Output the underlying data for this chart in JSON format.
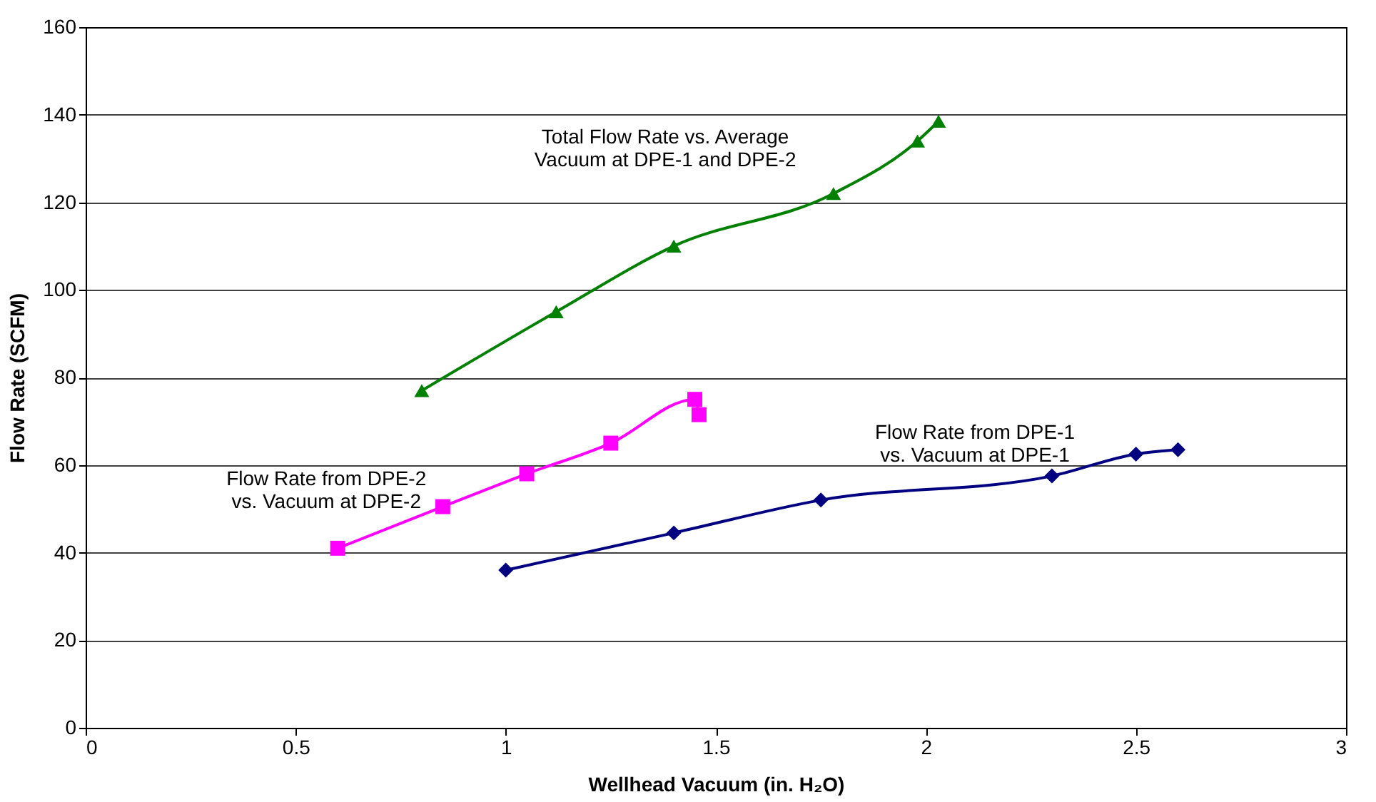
{
  "chart_data": {
    "type": "line",
    "xlabel": "Wellhead Vacuum (in. H₂O)",
    "ylabel": "Flow Rate (SCFM)",
    "xlim": [
      0,
      3
    ],
    "xticks": [
      0,
      0.5,
      1,
      1.5,
      2,
      2.5,
      3
    ],
    "ylim": [
      0,
      160
    ],
    "yticks": [
      0,
      20,
      40,
      60,
      80,
      100,
      120,
      140,
      160
    ],
    "grid": "y",
    "series": [
      {
        "name": "Total Flow Rate vs. Average\nVacuum at DPE-1 and DPE-2",
        "color": "#008000",
        "marker": "triangle",
        "x": [
          0.8,
          1.12,
          1.4,
          1.78,
          1.98,
          2.03
        ],
        "values": [
          77,
          95,
          110,
          122,
          134,
          138.5
        ]
      },
      {
        "name": "Flow Rate from DPE-2\nvs. Vacuum at DPE-2",
        "color": "#ff00ff",
        "marker": "square",
        "x": [
          0.6,
          0.85,
          1.05,
          1.25,
          1.45,
          1.46
        ],
        "values": [
          41,
          50.5,
          58,
          65,
          75,
          71.5
        ]
      },
      {
        "name": "Flow Rate from DPE-1\nvs. Vacuum at DPE-1",
        "color": "#000080",
        "marker": "diamond",
        "x": [
          1.0,
          1.4,
          1.75,
          2.3,
          2.5,
          2.6
        ],
        "values": [
          36,
          44.5,
          52,
          57.5,
          62.5,
          63.5
        ]
      }
    ]
  }
}
